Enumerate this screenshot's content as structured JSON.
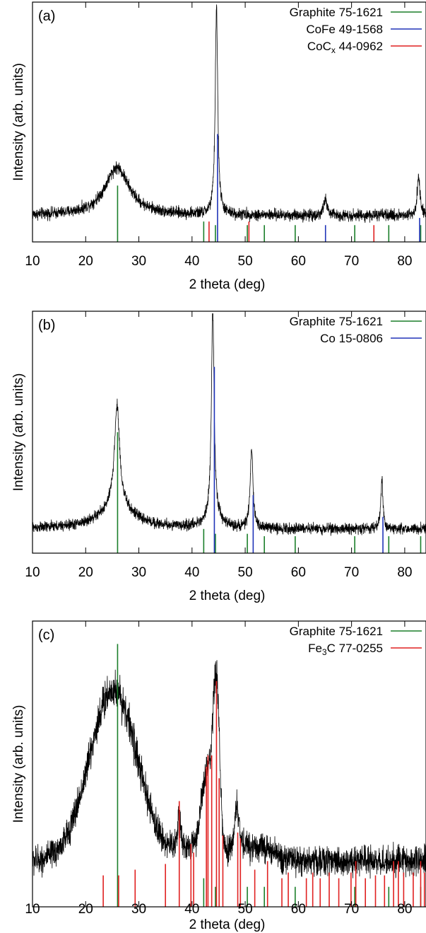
{
  "colors": {
    "frame": "#000000",
    "pattern": "#000000",
    "graphite": "#1b7f2a",
    "cofe": "#2034b8",
    "co": "#2034b8",
    "cocx": "#e02020",
    "fe3c": "#e02020"
  },
  "chart_data": [
    {
      "type": "line",
      "panel_label": "(a)",
      "xlabel": "2 theta (deg)",
      "ylabel": "Intensity (arb. units)",
      "xlim": [
        10,
        84
      ],
      "ylim": [
        0,
        1
      ],
      "x_ticks": [
        10,
        20,
        30,
        40,
        50,
        60,
        70,
        80
      ],
      "x_tick_labels": [
        "10",
        "20",
        "30",
        "40",
        "50",
        "60",
        "70",
        "80"
      ],
      "grid": false,
      "legend_position": "top-right",
      "legend": [
        {
          "label": "Graphite 75-1621",
          "base": "Graphite 75-1621",
          "sub": "",
          "tail": "",
          "color": "#1b7f2a"
        },
        {
          "label": "CoFe 49-1568",
          "base": "CoFe 49-1568",
          "sub": "",
          "tail": "",
          "color": "#2034b8"
        },
        {
          "label": "CoCx 44-0962",
          "base": "CoC",
          "sub": "x",
          "tail": " 44-0962",
          "color": "#e02020"
        }
      ],
      "pattern": {
        "baseline": 0.11,
        "noise": 0.012,
        "peaks": [
          {
            "x": 25.9,
            "height": 0.2,
            "width": 2.8,
            "shape": "lorentz"
          },
          {
            "x": 44.6,
            "height": 0.87,
            "width": 0.28,
            "shape": "lorentz"
          },
          {
            "x": 65.1,
            "height": 0.07,
            "width": 0.35,
            "shape": "lorentz"
          },
          {
            "x": 82.6,
            "height": 0.17,
            "width": 0.3,
            "shape": "lorentz"
          }
        ]
      },
      "reference_sets": [
        {
          "name": "Graphite 75-1621",
          "color": "#1b7f2a",
          "lines": [
            [
              26.0,
              0.235
            ],
            [
              42.2,
              0.085
            ],
            [
              44.4,
              0.07
            ],
            [
              50.4,
              0.07
            ],
            [
              53.6,
              0.07
            ],
            [
              59.4,
              0.07
            ],
            [
              70.6,
              0.07
            ],
            [
              77.0,
              0.07
            ],
            [
              83.0,
              0.07
            ]
          ]
        },
        {
          "name": "CoFe 49-1568",
          "color": "#2034b8",
          "lines": [
            [
              44.8,
              0.45
            ],
            [
              65.1,
              0.07
            ],
            [
              82.8,
              0.1
            ]
          ]
        },
        {
          "name": "CoCx 44-0962",
          "color": "#e02020",
          "lines": [
            [
              43.2,
              0.085
            ],
            [
              50.7,
              0.085
            ],
            [
              74.2,
              0.07
            ]
          ]
        }
      ]
    },
    {
      "type": "line",
      "panel_label": "(b)",
      "xlabel": "2 theta (deg)",
      "ylabel": "Intensity (arb. units)",
      "xlim": [
        10,
        84
      ],
      "ylim": [
        0,
        1
      ],
      "x_ticks": [
        10,
        20,
        30,
        40,
        50,
        60,
        70,
        80
      ],
      "x_tick_labels": [
        "10",
        "20",
        "30",
        "40",
        "50",
        "60",
        "70",
        "80"
      ],
      "grid": false,
      "legend_position": "top-right",
      "legend": [
        {
          "label": "Graphite 75-1621",
          "base": "Graphite 75-1621",
          "sub": "",
          "tail": "",
          "color": "#1b7f2a"
        },
        {
          "label": "Co 15-0806",
          "base": "Co 15-0806",
          "sub": "",
          "tail": "",
          "color": "#2034b8"
        }
      ],
      "pattern": {
        "baseline": 0.1,
        "noise": 0.011,
        "peaks": [
          {
            "x": 25.9,
            "height": 0.42,
            "width": 0.6,
            "shape": "lorentz"
          },
          {
            "x": 25.9,
            "height": 0.09,
            "width": 4.0,
            "shape": "lorentz"
          },
          {
            "x": 43.9,
            "height": 0.86,
            "width": 0.3,
            "shape": "lorentz"
          },
          {
            "x": 43.9,
            "height": 0.05,
            "width": 1.5,
            "shape": "lorentz"
          },
          {
            "x": 51.2,
            "height": 0.33,
            "width": 0.3,
            "shape": "lorentz"
          },
          {
            "x": 75.7,
            "height": 0.2,
            "width": 0.25,
            "shape": "lorentz"
          }
        ]
      },
      "reference_sets": [
        {
          "name": "Graphite 75-1621",
          "color": "#1b7f2a",
          "lines": [
            [
              26.0,
              0.5
            ],
            [
              42.2,
              0.1
            ],
            [
              44.4,
              0.08
            ],
            [
              50.4,
              0.08
            ],
            [
              53.6,
              0.07
            ],
            [
              59.4,
              0.07
            ],
            [
              70.6,
              0.07
            ],
            [
              77.0,
              0.07
            ],
            [
              83.0,
              0.07
            ]
          ]
        },
        {
          "name": "Co 15-0806",
          "color": "#2034b8",
          "lines": [
            [
              44.2,
              0.77
            ],
            [
              51.5,
              0.24
            ],
            [
              75.9,
              0.15
            ]
          ]
        }
      ]
    },
    {
      "type": "line",
      "panel_label": "(c)",
      "xlabel": "2 theta (deg)",
      "ylabel": "Intensity (arb. units)",
      "xlim": [
        10,
        84
      ],
      "ylim": [
        0,
        1
      ],
      "x_ticks": [
        10,
        20,
        30,
        40,
        50,
        60,
        70,
        80
      ],
      "x_tick_labels": [
        "10",
        "20",
        "30",
        "40",
        "50",
        "60",
        "70",
        "80"
      ],
      "grid": false,
      "legend_position": "top-right",
      "legend": [
        {
          "label": "Graphite 75-1621",
          "base": "Graphite 75-1621",
          "sub": "",
          "tail": "",
          "color": "#1b7f2a"
        },
        {
          "label": "Fe3C 77-0255",
          "base": "Fe",
          "sub": "3",
          "tail": "C 77-0255",
          "color": "#e02020"
        }
      ],
      "pattern": {
        "baseline": 0.16,
        "noise": 0.025,
        "peaks": [
          {
            "x": 25.2,
            "height": 0.6,
            "width": 4.5,
            "shape": "gauss"
          },
          {
            "x": 37.6,
            "height": 0.12,
            "width": 0.4,
            "shape": "lorentz"
          },
          {
            "x": 42.9,
            "height": 0.28,
            "width": 1.1,
            "shape": "gauss"
          },
          {
            "x": 44.6,
            "height": 0.55,
            "width": 0.6,
            "shape": "gauss"
          },
          {
            "x": 48.4,
            "height": 0.17,
            "width": 0.5,
            "shape": "lorentz"
          },
          {
            "x": 40.5,
            "height": 0.04,
            "width": 3.0,
            "shape": "gauss"
          },
          {
            "x": 52.0,
            "height": 0.05,
            "width": 3.0,
            "shape": "gauss"
          }
        ]
      },
      "reference_sets": [
        {
          "name": "Graphite 75-1621",
          "color": "#1b7f2a",
          "lines": [
            [
              26.0,
              0.92
            ],
            [
              42.2,
              0.1
            ],
            [
              44.4,
              0.07
            ],
            [
              50.4,
              0.07
            ],
            [
              53.6,
              0.07
            ],
            [
              59.4,
              0.07
            ],
            [
              70.6,
              0.07
            ],
            [
              77.0,
              0.07
            ],
            [
              83.0,
              0.07
            ]
          ]
        },
        {
          "name": "Fe3C 77-0255",
          "color": "#e02020",
          "lines": [
            [
              23.3,
              0.11
            ],
            [
              26.2,
              0.11
            ],
            [
              29.3,
              0.13
            ],
            [
              35.0,
              0.15
            ],
            [
              37.6,
              0.37
            ],
            [
              39.8,
              0.22
            ],
            [
              40.3,
              0.19
            ],
            [
              42.7,
              0.49
            ],
            [
              43.0,
              0.53
            ],
            [
              43.7,
              0.53
            ],
            [
              44.6,
              0.79
            ],
            [
              45.1,
              0.45
            ],
            [
              45.8,
              0.25
            ],
            [
              48.6,
              0.26
            ],
            [
              49.1,
              0.24
            ],
            [
              51.8,
              0.13
            ],
            [
              54.2,
              0.16
            ],
            [
              56.9,
              0.1
            ],
            [
              58.1,
              0.12
            ],
            [
              61.5,
              0.1
            ],
            [
              62.7,
              0.12
            ],
            [
              64.1,
              0.1
            ],
            [
              65.8,
              0.12
            ],
            [
              67.6,
              0.1
            ],
            [
              69.9,
              0.12
            ],
            [
              70.8,
              0.16
            ],
            [
              72.6,
              0.1
            ],
            [
              74.5,
              0.11
            ],
            [
              76.2,
              0.11
            ],
            [
              77.9,
              0.16
            ],
            [
              78.8,
              0.16
            ],
            [
              79.8,
              0.12
            ],
            [
              81.6,
              0.12
            ],
            [
              83.0,
              0.16
            ],
            [
              83.7,
              0.12
            ]
          ]
        }
      ]
    }
  ]
}
